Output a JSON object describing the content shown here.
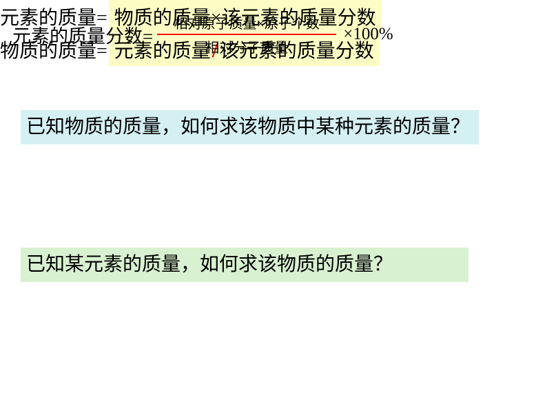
{
  "formula": {
    "label": "元素的质量分数=",
    "numerator": "相对原子质量×原子个数",
    "denominator": "相对分子质量",
    "suffix": "×100%",
    "line_color": "#ff0000"
  },
  "question1": "已知物质的质量，如何求该物质中某种元素的质量？",
  "eq2": {
    "lhs": "元素的质量=",
    "rhs": "物质的质量×该元素的质量分数"
  },
  "question2": "已知某元素的质量，如何求该物质的质量？",
  "eq3": {
    "lhs": "物质的质量=",
    "rhs_part1": "元素的质量",
    "rhs_slash": "/",
    "rhs_part2": "该元素的质量分数"
  },
  "colors": {
    "q1_bg": "#d5f0f3",
    "q2_bg": "#d8f1d0",
    "highlight_bg": "#fcfdc5",
    "slash_color": "#ff0000"
  }
}
